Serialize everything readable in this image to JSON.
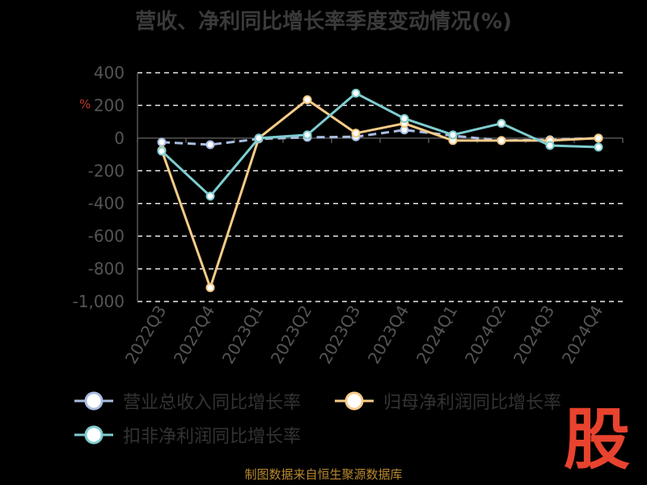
{
  "title": "营收、净利同比增长率季度变动情况(%)",
  "source": "制图数据来自恒生聚源数据库",
  "logo_text": "股",
  "pct_mark": "%",
  "chart_data": {
    "type": "line",
    "categories": [
      "2022Q3",
      "2022Q4",
      "2023Q1",
      "2023Q2",
      "2023Q3",
      "2023Q4",
      "2024Q1",
      "2024Q2",
      "2024Q3",
      "2024Q4"
    ],
    "ylim": [
      -1000,
      400
    ],
    "yticks": [
      400,
      200,
      0,
      -200,
      -400,
      -600,
      -800,
      -1000
    ],
    "ytick_labels": [
      "400",
      "200",
      "0",
      "-200",
      "-400",
      "-600",
      "-800",
      "-1,000"
    ],
    "grid": true,
    "legend_position": "bottom",
    "series": [
      {
        "name": "营业总收入同比增长率",
        "color": "#a9bde0",
        "values": [
          -25,
          -40,
          -5,
          5,
          8,
          50,
          15,
          -15,
          -10,
          0
        ]
      },
      {
        "name": "归母净利润同比增长率",
        "color": "#f7cc88",
        "values": [
          -75,
          -915,
          0,
          235,
          30,
          90,
          -15,
          -15,
          -15,
          0
        ]
      },
      {
        "name": "扣非净利润同比增长率",
        "color": "#7ecdd0",
        "values": [
          -80,
          -355,
          0,
          20,
          275,
          120,
          20,
          90,
          -45,
          -55
        ]
      }
    ]
  }
}
